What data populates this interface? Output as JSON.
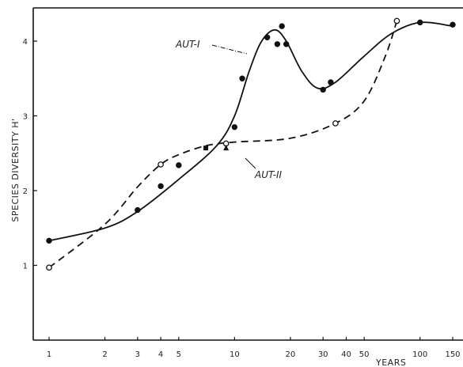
{
  "chart_data": {
    "type": "scatter",
    "title": "",
    "xlabel": "YEARS",
    "ylabel": "SPECIES DIVERSITY H'",
    "x_scale": "log",
    "xlim": [
      0.9,
      170
    ],
    "ylim": [
      0,
      4.45
    ],
    "x_ticks": [
      1,
      2,
      3,
      4,
      5,
      10,
      20,
      30,
      40,
      50,
      100,
      150
    ],
    "x_tick_labels": [
      "1",
      "2",
      "3",
      "4",
      "5",
      "10",
      "20",
      "30",
      "40",
      "50",
      "100",
      "150"
    ],
    "y_ticks": [
      1,
      2,
      3,
      4
    ],
    "y_tick_labels": [
      "1",
      "2",
      "3",
      "4"
    ],
    "grid": false,
    "series": [
      {
        "name": "AUT-I",
        "line_style": "solid",
        "marker": "filled",
        "points": [
          {
            "x": 1,
            "y": 1.33
          },
          {
            "x": 3,
            "y": 1.74
          },
          {
            "x": 4,
            "y": 2.06
          },
          {
            "x": 5,
            "y": 2.34
          },
          {
            "x": 10,
            "y": 2.85
          },
          {
            "x": 11,
            "y": 3.5
          },
          {
            "x": 15,
            "y": 4.05
          },
          {
            "x": 17,
            "y": 3.96
          },
          {
            "x": 18,
            "y": 4.2
          },
          {
            "x": 19,
            "y": 3.96
          },
          {
            "x": 30,
            "y": 3.35
          },
          {
            "x": 33,
            "y": 3.45
          },
          {
            "x": 100,
            "y": 4.25
          },
          {
            "x": 150,
            "y": 4.22
          }
        ],
        "curve": [
          {
            "x": 1,
            "y": 1.33
          },
          {
            "x": 2,
            "y": 1.5
          },
          {
            "x": 3,
            "y": 1.72
          },
          {
            "x": 5,
            "y": 2.15
          },
          {
            "x": 8,
            "y": 2.6
          },
          {
            "x": 10,
            "y": 3.0
          },
          {
            "x": 12,
            "y": 3.6
          },
          {
            "x": 14,
            "y": 4.0
          },
          {
            "x": 16.5,
            "y": 4.15
          },
          {
            "x": 19,
            "y": 4.0
          },
          {
            "x": 23,
            "y": 3.6
          },
          {
            "x": 28,
            "y": 3.37
          },
          {
            "x": 35,
            "y": 3.45
          },
          {
            "x": 50,
            "y": 3.8
          },
          {
            "x": 70,
            "y": 4.1
          },
          {
            "x": 100,
            "y": 4.25
          },
          {
            "x": 150,
            "y": 4.2
          }
        ]
      },
      {
        "name": "AUT-II",
        "line_style": "dashed",
        "marker": "open",
        "points": [
          {
            "x": 1,
            "y": 0.97
          },
          {
            "x": 4,
            "y": 2.35
          },
          {
            "x": 9,
            "y": 2.63
          },
          {
            "x": 35,
            "y": 2.9
          },
          {
            "x": 75,
            "y": 4.27
          }
        ],
        "curve": [
          {
            "x": 1,
            "y": 0.97
          },
          {
            "x": 2,
            "y": 1.55
          },
          {
            "x": 3,
            "y": 2.05
          },
          {
            "x": 4,
            "y": 2.35
          },
          {
            "x": 5,
            "y": 2.48
          },
          {
            "x": 7,
            "y": 2.6
          },
          {
            "x": 10,
            "y": 2.65
          },
          {
            "x": 20,
            "y": 2.7
          },
          {
            "x": 35,
            "y": 2.9
          },
          {
            "x": 50,
            "y": 3.2
          },
          {
            "x": 65,
            "y": 3.8
          },
          {
            "x": 75,
            "y": 4.27
          }
        ]
      }
    ],
    "extra_points": [
      {
        "x": 7,
        "y": 2.57,
        "marker": "square"
      },
      {
        "x": 9,
        "y": 2.57,
        "marker": "triangle"
      }
    ],
    "annotations": [
      {
        "text": "AUT-I",
        "series": "AUT-I"
      },
      {
        "text": "AUT-II",
        "series": "AUT-II"
      }
    ]
  }
}
